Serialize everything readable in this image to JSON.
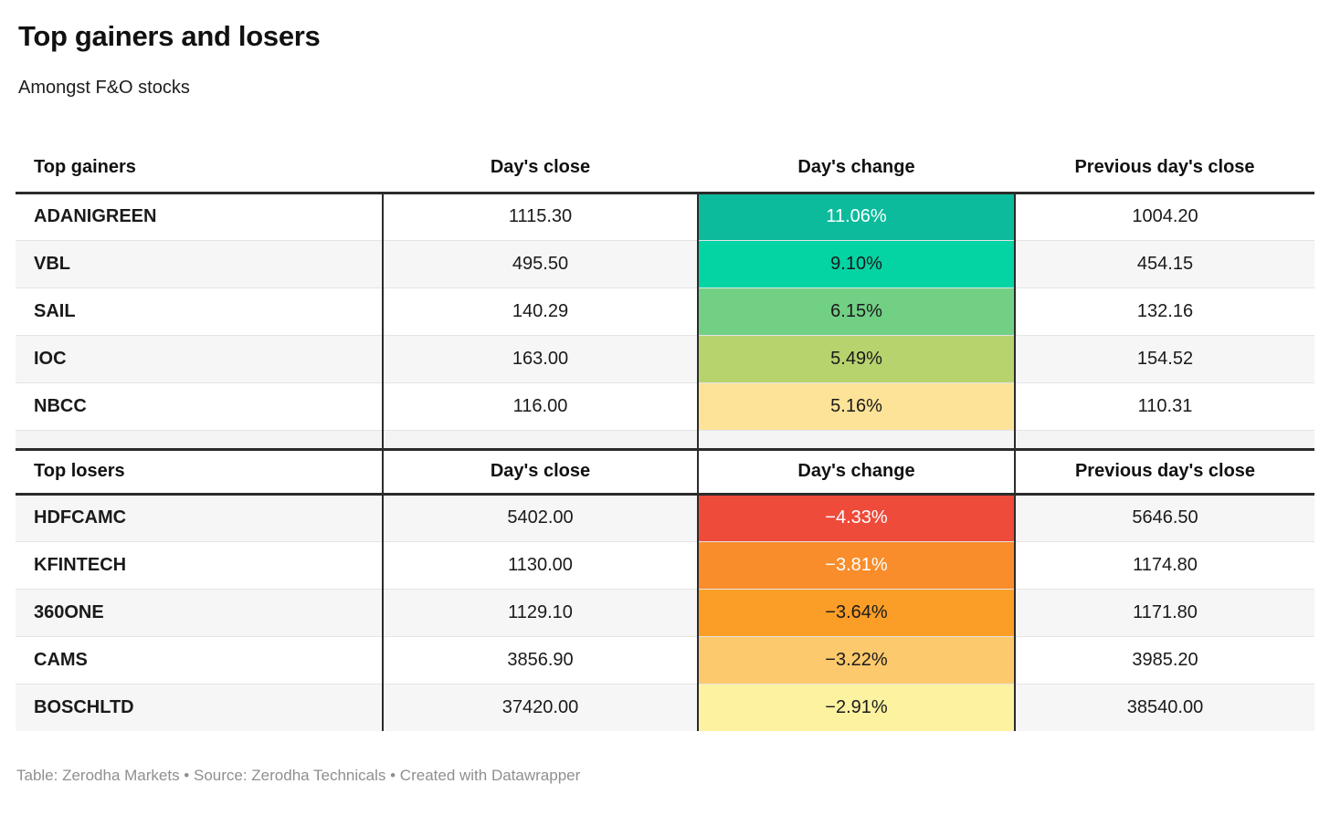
{
  "chart_data": {
    "type": "table",
    "title": "Top gainers and losers",
    "subtitle": "Amongst F&O stocks",
    "sections": [
      {
        "header": {
          "label": "Top gainers",
          "close": "Day's close",
          "change": "Day's change",
          "prev_close": "Previous day's close"
        },
        "rows": [
          {
            "name": "ADANIGREEN",
            "close": "1115.30",
            "change": "11.06%",
            "change_value": 11.06,
            "change_bg": "#0cbb9c",
            "change_fg": "#ffffff",
            "prev_close": "1004.20"
          },
          {
            "name": "VBL",
            "close": "495.50",
            "change": "9.10%",
            "change_value": 9.1,
            "change_bg": "#04d3a4",
            "change_fg": "#1a1a1a",
            "prev_close": "454.15"
          },
          {
            "name": "SAIL",
            "close": "140.29",
            "change": "6.15%",
            "change_value": 6.15,
            "change_bg": "#72d085",
            "change_fg": "#1a1a1a",
            "prev_close": "132.16"
          },
          {
            "name": "IOC",
            "close": "163.00",
            "change": "5.49%",
            "change_value": 5.49,
            "change_bg": "#b7d36e",
            "change_fg": "#1a1a1a",
            "prev_close": "154.52"
          },
          {
            "name": "NBCC",
            "close": "116.00",
            "change": "5.16%",
            "change_value": 5.16,
            "change_bg": "#fce398",
            "change_fg": "#1a1a1a",
            "prev_close": "110.31"
          }
        ]
      },
      {
        "header": {
          "label": "Top losers",
          "close": "Day's close",
          "change": "Day's change",
          "prev_close": "Previous day's close"
        },
        "rows": [
          {
            "name": "HDFCAMC",
            "close": "5402.00",
            "change": "−4.33%",
            "change_value": -4.33,
            "change_bg": "#ee4b3b",
            "change_fg": "#ffffff",
            "prev_close": "5646.50"
          },
          {
            "name": "KFINTECH",
            "close": "1130.00",
            "change": "−3.81%",
            "change_value": -3.81,
            "change_bg": "#f98d2b",
            "change_fg": "#ffffff",
            "prev_close": "1174.80"
          },
          {
            "name": "360ONE",
            "close": "1129.10",
            "change": "−3.64%",
            "change_value": -3.64,
            "change_bg": "#fb9e27",
            "change_fg": "#1a1a1a",
            "prev_close": "1171.80"
          },
          {
            "name": "CAMS",
            "close": "3856.90",
            "change": "−3.22%",
            "change_value": -3.22,
            "change_bg": "#fdc96d",
            "change_fg": "#1a1a1a",
            "prev_close": "3985.20"
          },
          {
            "name": "BOSCHLTD",
            "close": "37420.00",
            "change": "−2.91%",
            "change_value": -2.91,
            "change_bg": "#fcf2a0",
            "change_fg": "#1a1a1a",
            "prev_close": "38540.00"
          }
        ]
      }
    ],
    "layout": {
      "accent_border_color": "#2b2b2b",
      "alt_row_color": "#f6f6f6",
      "row_separator_color": "#e4e4e4"
    }
  },
  "footer": {
    "text": "Table: Zerodha Markets • Source: Zerodha Technicals • Created with Datawrapper"
  }
}
